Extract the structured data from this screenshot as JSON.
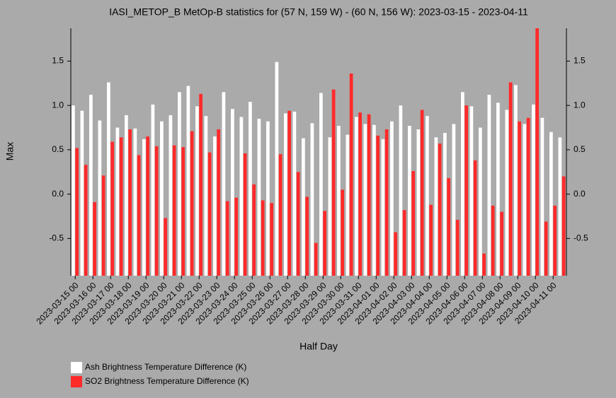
{
  "chart_data": {
    "type": "bar",
    "title": "IASI_METOP_B MetOp-B statistics for (57 N, 159 W) - (60 N, 156 W): 2023-03-15 - 2023-04-11",
    "xlabel": "Half Day",
    "ylabel": "Max",
    "categories": [
      "2023-03-15 00",
      null,
      "2023-03-16 00",
      null,
      "2023-03-17 00",
      null,
      "2023-03-18 00",
      null,
      "2023-03-19 00",
      null,
      "2023-03-20 00",
      null,
      "2023-03-21 00",
      null,
      "2023-03-22 00",
      null,
      "2023-03-23 00",
      null,
      "2023-03-24 00",
      null,
      "2023-03-25 00",
      null,
      "2023-03-26 00",
      null,
      "2023-03-27 00",
      null,
      "2023-03-28 00",
      null,
      "2023-03-29 00",
      null,
      "2023-03-30 00",
      null,
      "2023-03-31 00",
      null,
      "2023-04-01 00",
      null,
      "2023-04-02 00",
      null,
      "2023-04-03 00",
      null,
      "2023-04-04 00",
      null,
      "2023-04-05 00",
      null,
      "2023-04-06 00",
      null,
      "2023-04-07 00",
      null,
      "2023-04-08 00",
      null,
      "2023-04-09 00",
      null,
      "2023-04-10 00",
      null,
      "2023-04-11 00",
      null
    ],
    "series": [
      {
        "name": "Ash Brightness Temperature Difference (K)",
        "color": "#ffffff",
        "values": [
          1.0,
          0.94,
          1.12,
          0.83,
          1.26,
          0.75,
          0.89,
          0.74,
          0.62,
          1.01,
          0.82,
          0.89,
          1.15,
          1.22,
          0.99,
          0.88,
          0.65,
          1.15,
          0.96,
          0.87,
          1.04,
          0.85,
          0.82,
          1.49,
          0.91,
          0.93,
          0.63,
          0.8,
          1.14,
          0.64,
          0.77,
          0.67,
          0.87,
          0.79,
          0.78,
          0.62,
          0.82,
          1.0,
          0.77,
          0.73,
          0.88,
          0.64,
          0.69,
          0.79,
          1.15,
          0.99,
          0.75,
          1.12,
          1.03,
          0.95,
          1.23,
          0.79,
          1.01,
          0.86,
          0.7,
          0.64
        ]
      },
      {
        "name": "SO2 Brightness Temperature Difference (K)",
        "color": "#ff2a2a",
        "values": [
          0.52,
          0.33,
          -0.09,
          0.21,
          0.59,
          0.64,
          0.73,
          0.44,
          0.65,
          0.54,
          -0.27,
          0.55,
          0.53,
          0.71,
          1.13,
          0.47,
          0.73,
          -0.08,
          -0.04,
          0.46,
          0.11,
          -0.07,
          -0.1,
          0.45,
          0.94,
          0.25,
          -0.03,
          -0.55,
          -0.19,
          1.18,
          0.05,
          1.36,
          0.92,
          0.9,
          0.66,
          0.73,
          -0.43,
          -0.18,
          0.26,
          0.95,
          -0.12,
          0.57,
          0.18,
          -0.29,
          1.0,
          0.38,
          -0.67,
          -0.13,
          -0.2,
          1.26,
          0.82,
          0.86,
          1.87,
          -0.31,
          -0.13,
          0.2
        ]
      }
    ],
    "ylim": [
      -0.92,
      1.87
    ],
    "yticks": [
      -0.5,
      {
        "value": 0,
        "label": "0.0"
      },
      0.5,
      {
        "value": 1,
        "label": "1.0"
      },
      1.5
    ],
    "grid": false,
    "legend": "bottom-left"
  }
}
